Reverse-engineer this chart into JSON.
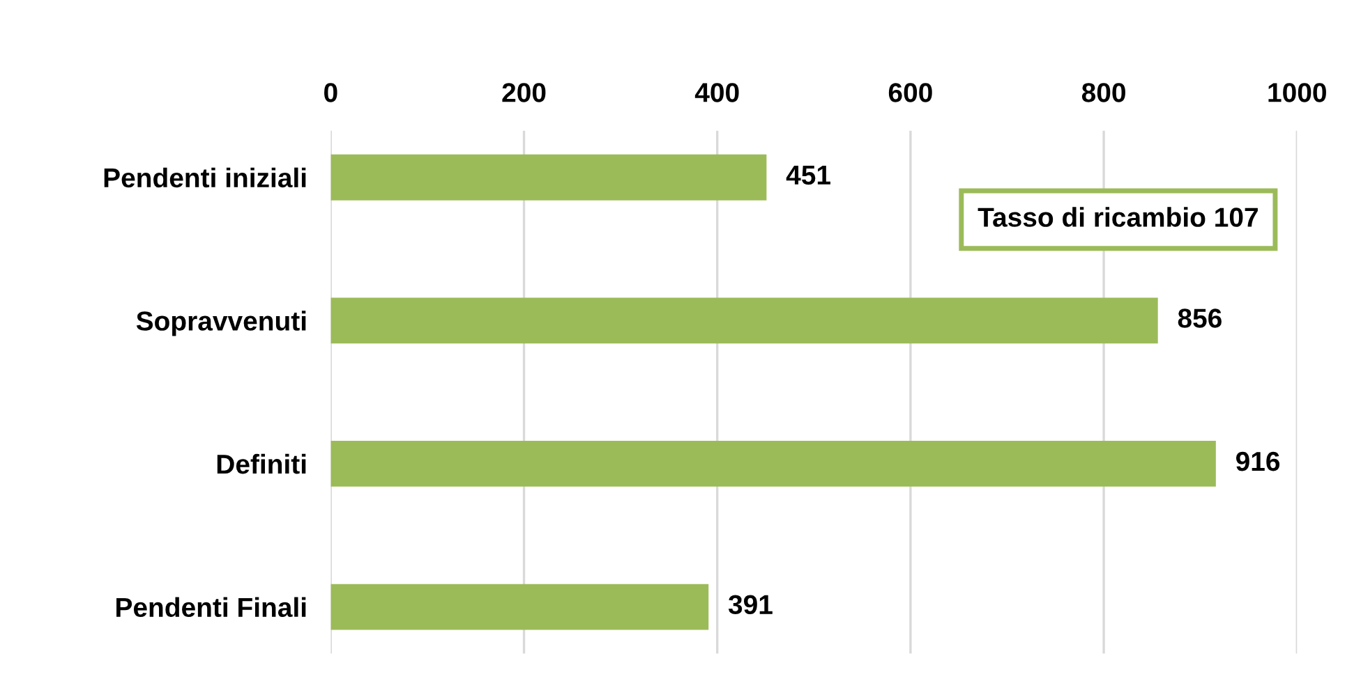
{
  "chart_data": {
    "type": "bar",
    "orientation": "horizontal",
    "categories": [
      "Pendenti iniziali",
      "Sopravvenuti",
      "Definiti",
      "Pendenti Finali"
    ],
    "values": [
      451,
      856,
      916,
      391
    ],
    "color": "#9bbb59",
    "xlim": [
      0,
      1000
    ],
    "xticks": [
      0,
      200,
      400,
      600,
      800,
      1000
    ],
    "grid": "x",
    "data_labels": true,
    "annotations": [
      "Tasso di ricambio 107"
    ]
  }
}
